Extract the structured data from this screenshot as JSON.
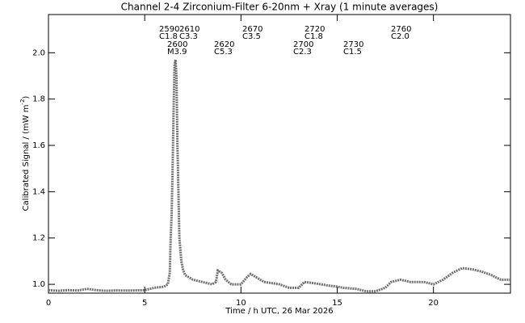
{
  "chart_data": {
    "type": "line",
    "title": "Channel 2-4   Zirconium-Filter   6-20nm + Xray   (1 minute averages)",
    "xlabel": "Time / h UTC, 26 Mar 2026",
    "ylabel": "Calibrated Signal / (mW m",
    "ylabel_sup": "-2",
    "ylabel_end": ")",
    "xlim": [
      0,
      24
    ],
    "ylim": [
      0.962,
      2.165
    ],
    "xticks": [
      0,
      5,
      10,
      15,
      20
    ],
    "yticks": [
      {
        "value": 1,
        "label": "1.0"
      },
      1.2,
      1.4,
      1.6,
      1.8,
      {
        "value": 2,
        "label": "2.0"
      }
    ],
    "color": "#707070",
    "annotations": [
      {
        "label": "2590",
        "class": "C1.8"
      },
      {
        "label": "2610",
        "class": "C3.3"
      },
      {
        "label": "2600",
        "class": "M3.9"
      },
      {
        "label": "2620",
        "class": "C5.3"
      },
      {
        "label": "2670",
        "class": "C3.5"
      },
      {
        "label": "2720",
        "class": "C1.8"
      },
      {
        "label": "2700",
        "class": "C2.3"
      },
      {
        "label": "2730",
        "class": "C1.5"
      },
      {
        "label": "2760",
        "class": "C2.0"
      }
    ],
    "x": [
      0,
      0.5,
      1,
      1.5,
      2,
      2.5,
      3,
      3.5,
      4,
      4.5,
      5,
      5.5,
      6,
      6.2,
      6.3,
      6.35,
      6.4,
      6.45,
      6.5,
      6.55,
      6.6,
      6.65,
      6.7,
      6.75,
      6.8,
      6.9,
      7,
      7.1,
      7.5,
      8,
      8.5,
      8.7,
      8.8,
      9,
      9.2,
      9.5,
      10,
      10.3,
      10.5,
      10.8,
      11.2,
      12,
      12.5,
      13,
      13.3,
      13.8,
      14.5,
      15,
      15.3,
      16,
      16.5,
      17,
      17.5,
      17.8,
      18.3,
      18.8,
      19.5,
      20,
      20.5,
      21,
      21.5,
      22,
      22.5,
      23,
      23.5,
      24
    ],
    "values": [
      0.975,
      0.972,
      0.975,
      0.973,
      0.98,
      0.975,
      0.972,
      0.974,
      0.973,
      0.974,
      0.975,
      0.985,
      0.99,
      1.0,
      1.05,
      1.2,
      1.3,
      1.5,
      1.75,
      1.95,
      1.97,
      1.9,
      1.6,
      1.4,
      1.2,
      1.1,
      1.06,
      1.04,
      1.02,
      1.01,
      1.0,
      1.01,
      1.06,
      1.05,
      1.02,
      1.0,
      1.0,
      1.03,
      1.045,
      1.03,
      1.01,
      1.0,
      0.985,
      0.985,
      1.01,
      1.005,
      0.995,
      0.99,
      0.985,
      0.98,
      0.97,
      0.97,
      0.985,
      1.01,
      1.02,
      1.01,
      1.01,
      1.0,
      1.02,
      1.05,
      1.07,
      1.065,
      1.055,
      1.04,
      1.02,
      1.02
    ]
  }
}
